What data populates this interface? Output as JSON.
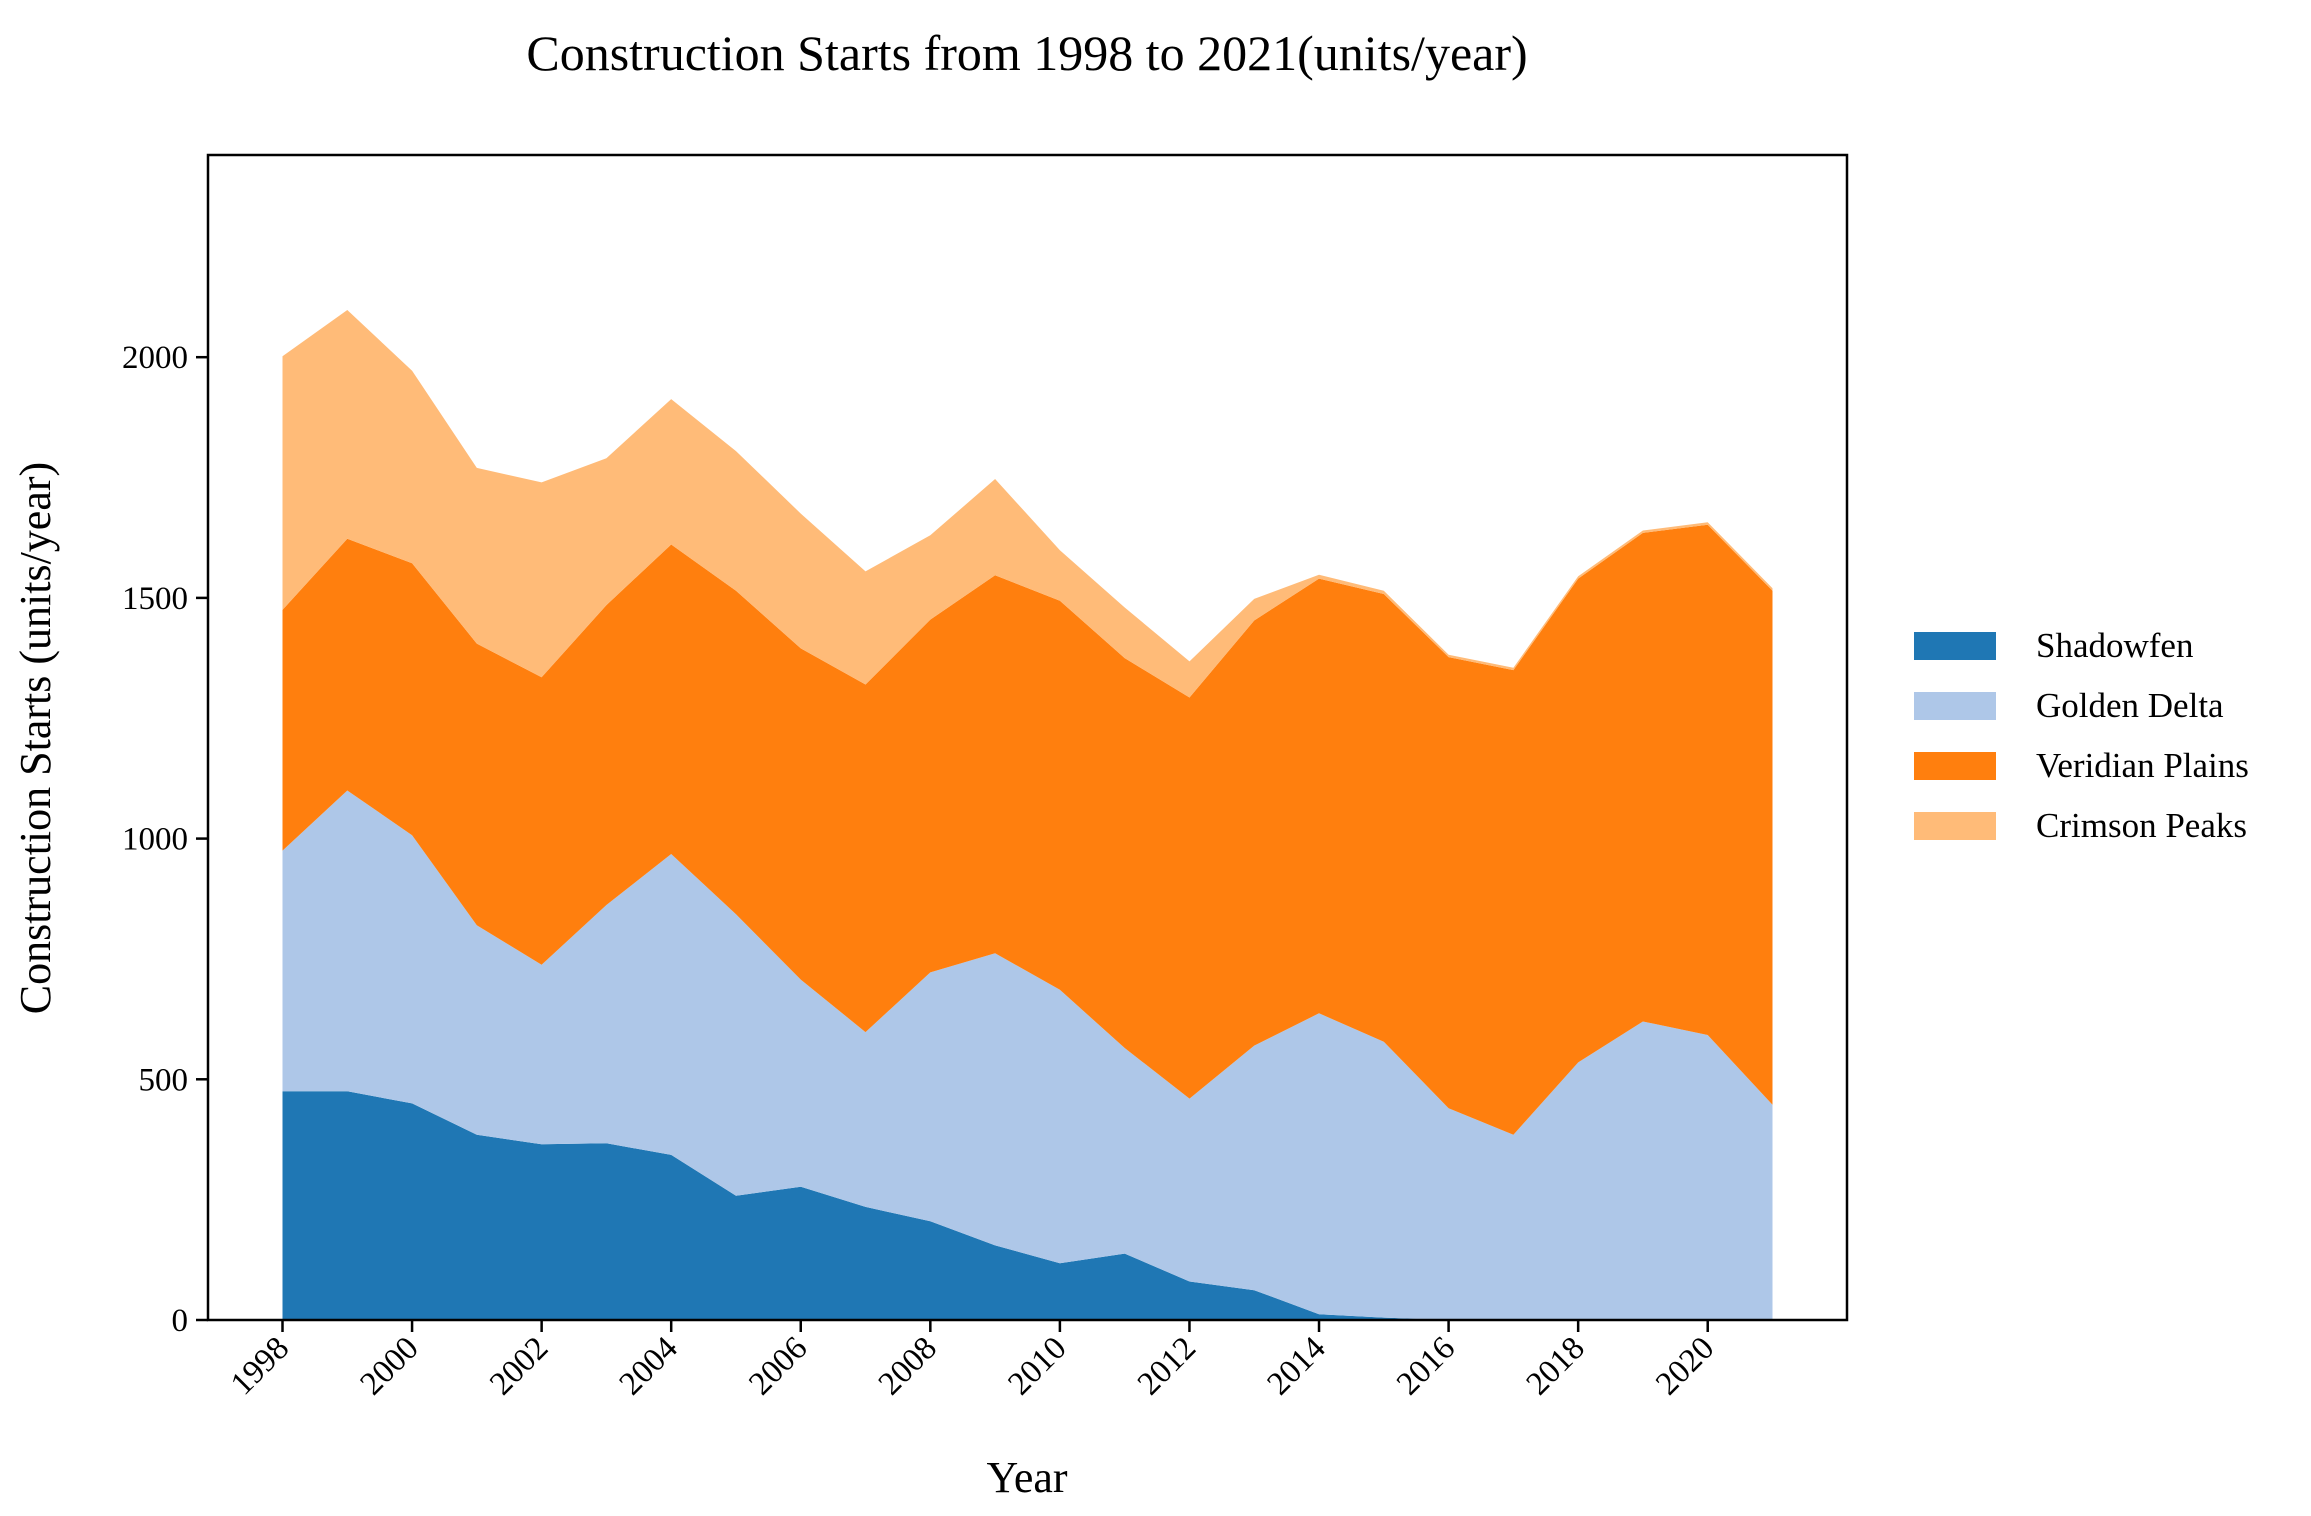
{
  "chart_data": {
    "type": "area",
    "stacked": true,
    "title": "Construction Starts from 1998 to 2021(units/year)",
    "xlabel": "Year",
    "ylabel": "Construction Starts (units/year)",
    "x": [
      1998,
      1999,
      2000,
      2001,
      2002,
      2003,
      2004,
      2005,
      2006,
      2007,
      2008,
      2009,
      2010,
      2011,
      2012,
      2013,
      2014,
      2015,
      2016,
      2017,
      2018,
      2019,
      2020,
      2021
    ],
    "xticks": [
      "1998",
      "2000",
      "2002",
      "2004",
      "2006",
      "2008",
      "2010",
      "2012",
      "2014",
      "2016",
      "2018",
      "2020"
    ],
    "xlim": [
      1996.85,
      2022.15
    ],
    "yticks": [
      "0",
      "500",
      "1000",
      "1500",
      "2000"
    ],
    "ylim": [
      0,
      2420
    ],
    "grid": false,
    "legend_position": "right",
    "series": [
      {
        "name": "Shadowfen",
        "color": "#1f77b4",
        "values": [
          475,
          475,
          450,
          385,
          365,
          367,
          343,
          258,
          277,
          235,
          205,
          155,
          118,
          138,
          80,
          62,
          12,
          5,
          0,
          0,
          0,
          0,
          0,
          0
        ]
      },
      {
        "name": "Golden Delta",
        "color": "#aec7e8",
        "values": [
          500,
          625,
          557,
          435,
          373,
          495,
          625,
          585,
          430,
          363,
          517,
          607,
          568,
          427,
          380,
          508,
          625,
          573,
          440,
          385,
          535,
          620,
          592,
          447
        ]
      },
      {
        "name": "Veridian Plains",
        "color": "#ff7f0e",
        "values": [
          500,
          523,
          565,
          585,
          597,
          623,
          643,
          672,
          688,
          722,
          733,
          785,
          808,
          810,
          833,
          883,
          903,
          930,
          937,
          965,
          1005,
          1015,
          1060,
          1068
        ]
      },
      {
        "name": "Crimson Peaks",
        "color": "#ffbb78",
        "values": [
          527,
          475,
          400,
          365,
          405,
          305,
          302,
          290,
          280,
          235,
          175,
          200,
          105,
          105,
          75,
          45,
          8,
          7,
          5,
          5,
          5,
          5,
          5,
          5
        ]
      }
    ]
  }
}
